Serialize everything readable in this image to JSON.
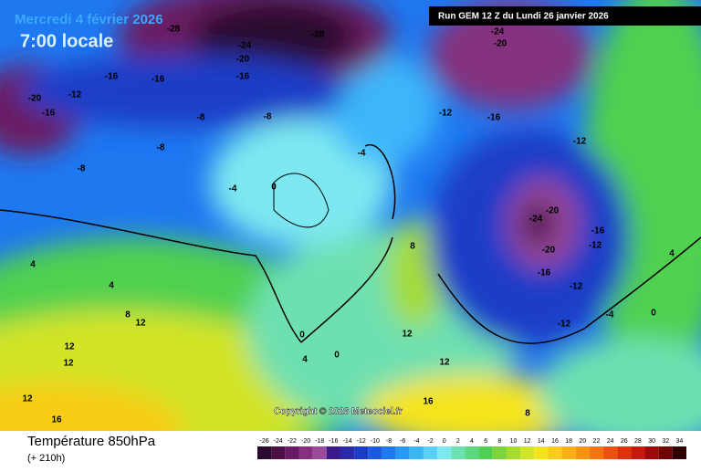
{
  "header": {
    "date": "Mercredi 4 février 2026",
    "time": "7:00 locale",
    "run": "Run GEM 12 Z du Lundi 26 janvier 2026"
  },
  "copyright": "Copyright © 2026 Meteociel.fr",
  "footer": {
    "title": "Température 850hPa",
    "lead": "(+ 210h)"
  },
  "legend": {
    "ticks": [
      -26,
      -24,
      -22,
      -20,
      -18,
      -16,
      -14,
      -12,
      -10,
      -8,
      -6,
      -4,
      -2,
      0,
      2,
      4,
      6,
      8,
      10,
      12,
      14,
      16,
      18,
      20,
      22,
      24,
      26,
      28,
      30,
      32,
      34
    ],
    "colors": [
      "#2a0a2e",
      "#4a1046",
      "#6a1a62",
      "#84307e",
      "#9a4a98",
      "#3a1a8a",
      "#2a2aa8",
      "#1c3cc8",
      "#1a5ae0",
      "#1e78f0",
      "#2a98f8",
      "#3cb6fa",
      "#5acff8",
      "#7de8f0",
      "#6ee0b0",
      "#5ed880",
      "#50d050",
      "#7ad43a",
      "#a6dc2e",
      "#d2e428",
      "#f4e41e",
      "#f8cc18",
      "#f8b014",
      "#f89412",
      "#f47410",
      "#ec520e",
      "#e0300c",
      "#c81a0a",
      "#a00a08",
      "#700404",
      "#300000"
    ]
  },
  "contour_labels": [
    "-28",
    "-28",
    "-24",
    "-24",
    "-20",
    "-20",
    "-16",
    "-16",
    "-16",
    "-12",
    "-8",
    "-8",
    "-20",
    "-16",
    "-12",
    "-16",
    "-12",
    "-8",
    "-8",
    "-4",
    "0",
    "-4",
    "-20",
    "-24",
    "-20",
    "-16",
    "-12",
    "-16",
    "-12",
    "4",
    "4",
    "8",
    "12",
    "12",
    "12",
    "12",
    "16",
    "0",
    "0",
    "4",
    "8",
    "12",
    "12",
    "8",
    "16",
    "-12",
    "0",
    "4",
    "-4"
  ]
}
